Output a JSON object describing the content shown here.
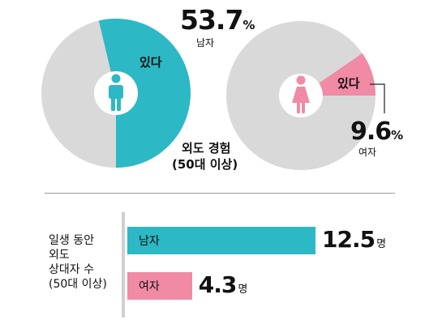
{
  "colors": {
    "male": "#2db8c6",
    "female": "#f08aa5",
    "rest": "#d9d9d9",
    "note_line": "#222222"
  },
  "chart_data": [
    {
      "type": "pie",
      "title": "외도 경험",
      "subtitle": "(50대 이상)",
      "pies": [
        {
          "group": "남자",
          "slice_label": "있다",
          "value": 53.7,
          "value_text": "53.7",
          "unit": "%",
          "icon": "male-person-icon"
        },
        {
          "group": "여자",
          "slice_label": "있다",
          "value": 9.6,
          "value_text": "9.6",
          "unit": "%",
          "icon": "female-person-icon"
        }
      ]
    },
    {
      "type": "bar",
      "title_lines": [
        "일생 동안",
        "외도",
        "상대자 수",
        "(50대 이상)"
      ],
      "categories": [
        "남자",
        "여자"
      ],
      "values": [
        12.5,
        4.3
      ],
      "value_texts": [
        "12.5",
        "4.3"
      ],
      "unit": "명"
    }
  ]
}
